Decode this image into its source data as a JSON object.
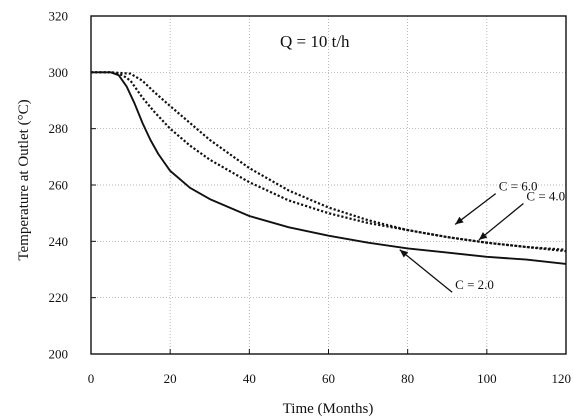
{
  "chart_data": {
    "type": "line",
    "title": "",
    "xlabel": "Time (Months)",
    "ylabel": "Temperature at Outlet (°C)",
    "xlim": [
      0,
      120
    ],
    "ylim": [
      200,
      320
    ],
    "xticks": [
      0,
      20,
      40,
      60,
      80,
      100,
      120
    ],
    "yticks": [
      200,
      220,
      240,
      260,
      280,
      300,
      320
    ],
    "grid": true,
    "annotation": "Q = 10 t/h",
    "series": [
      {
        "name": "C = 6.0",
        "style": "dashed",
        "x": [
          0,
          5,
          10,
          13,
          16,
          20,
          25,
          30,
          40,
          50,
          60,
          70,
          80,
          90,
          100,
          110,
          120
        ],
        "y": [
          300,
          300,
          299.5,
          297,
          293,
          288,
          282,
          276,
          266,
          258,
          252,
          247.5,
          244,
          241.5,
          239.5,
          238,
          236.5
        ]
      },
      {
        "name": "C = 4.0",
        "style": "dashed",
        "x": [
          0,
          5,
          8,
          10,
          13,
          16,
          20,
          25,
          30,
          40,
          50,
          60,
          70,
          80,
          90,
          100,
          110,
          120
        ],
        "y": [
          300,
          300,
          299,
          297,
          291,
          286,
          280,
          274,
          269,
          261,
          254.5,
          250,
          246.5,
          244,
          241.5,
          239.5,
          238,
          237
        ]
      },
      {
        "name": "C = 2.0",
        "style": "solid",
        "x": [
          0,
          5,
          7,
          9,
          11,
          13,
          15,
          17,
          20,
          25,
          30,
          40,
          50,
          60,
          70,
          80,
          90,
          100,
          110,
          120
        ],
        "y": [
          300,
          300,
          299,
          295,
          289,
          282,
          276,
          271,
          265,
          259,
          255,
          249,
          245,
          242,
          239.5,
          237.5,
          236,
          234.5,
          233.5,
          232
        ]
      }
    ],
    "labels": [
      {
        "text": "C = 6.0",
        "x": 103,
        "y": 258,
        "arrow_to": [
          92,
          246
        ]
      },
      {
        "text": "C = 4.0",
        "x": 110,
        "y": 254.5,
        "arrow_to": [
          98,
          240.5
        ]
      },
      {
        "text": "C = 2.0",
        "x": 92,
        "y": 223,
        "arrow_to": [
          78,
          237
        ]
      }
    ]
  },
  "colors": {
    "line": "#111111",
    "grid": "#9a9a9a",
    "background": "#ffffff"
  }
}
